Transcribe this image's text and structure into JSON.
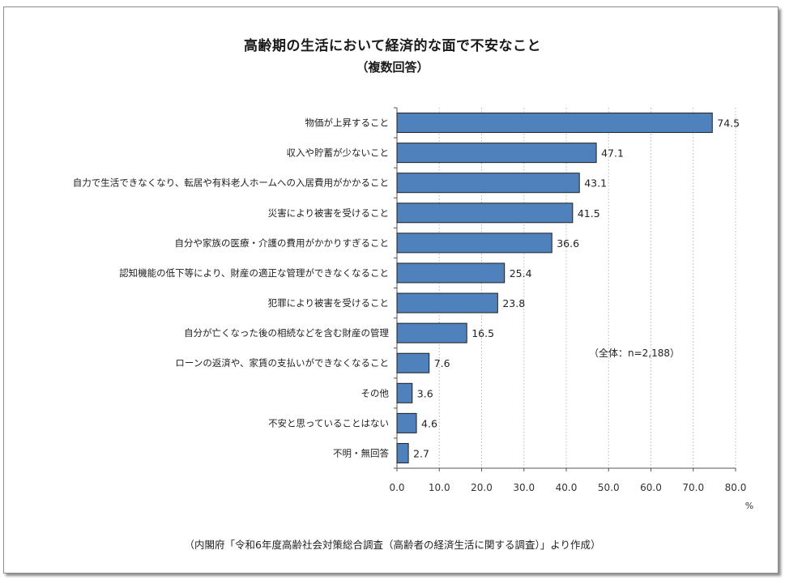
{
  "chart_data": {
    "type": "bar",
    "orientation": "horizontal",
    "title": "高齢期の生活において経済的な面で不安なこと",
    "subtitle": "（複数回答）",
    "categories": [
      "物価が上昇すること",
      "収入や貯蓄が少ないこと",
      "自力で生活できなくなり、転居や有料老人ホームへの入居費用がかかること",
      "災害により被害を受けること",
      "自分や家族の医療・介護の費用がかかりすぎること",
      "認知機能の低下等により、財産の適正な管理ができなくなること",
      "犯罪により被害を受けること",
      "自分が亡くなった後の相続などを含む財産の管理",
      "ローンの返済や、家賃の支払いができなくなること",
      "その他",
      "不安と思っていることはない",
      "不明・無回答"
    ],
    "values": [
      74.5,
      47.1,
      43.1,
      41.5,
      36.6,
      25.4,
      23.8,
      16.5,
      7.6,
      3.6,
      4.6,
      2.7
    ],
    "value_labels": [
      "74.5",
      "47.1",
      "43.1",
      "41.5",
      "36.6",
      "25.4",
      "23.8",
      "16.5",
      "7.6",
      "3.6",
      "4.6",
      "2.7"
    ],
    "xlim": [
      0,
      80
    ],
    "xticks": [
      "0.0",
      "10.0",
      "20.0",
      "30.0",
      "40.0",
      "50.0",
      "60.0",
      "70.0",
      "80.0"
    ],
    "xunit": "%",
    "grid": true,
    "bar_color": "#4f81bd",
    "note": "（全体：n=2,188）",
    "source": "（内閣府「令和6年度高齢社会対策総合調査（高齢者の経済生活に関する調査）」より作成）"
  }
}
